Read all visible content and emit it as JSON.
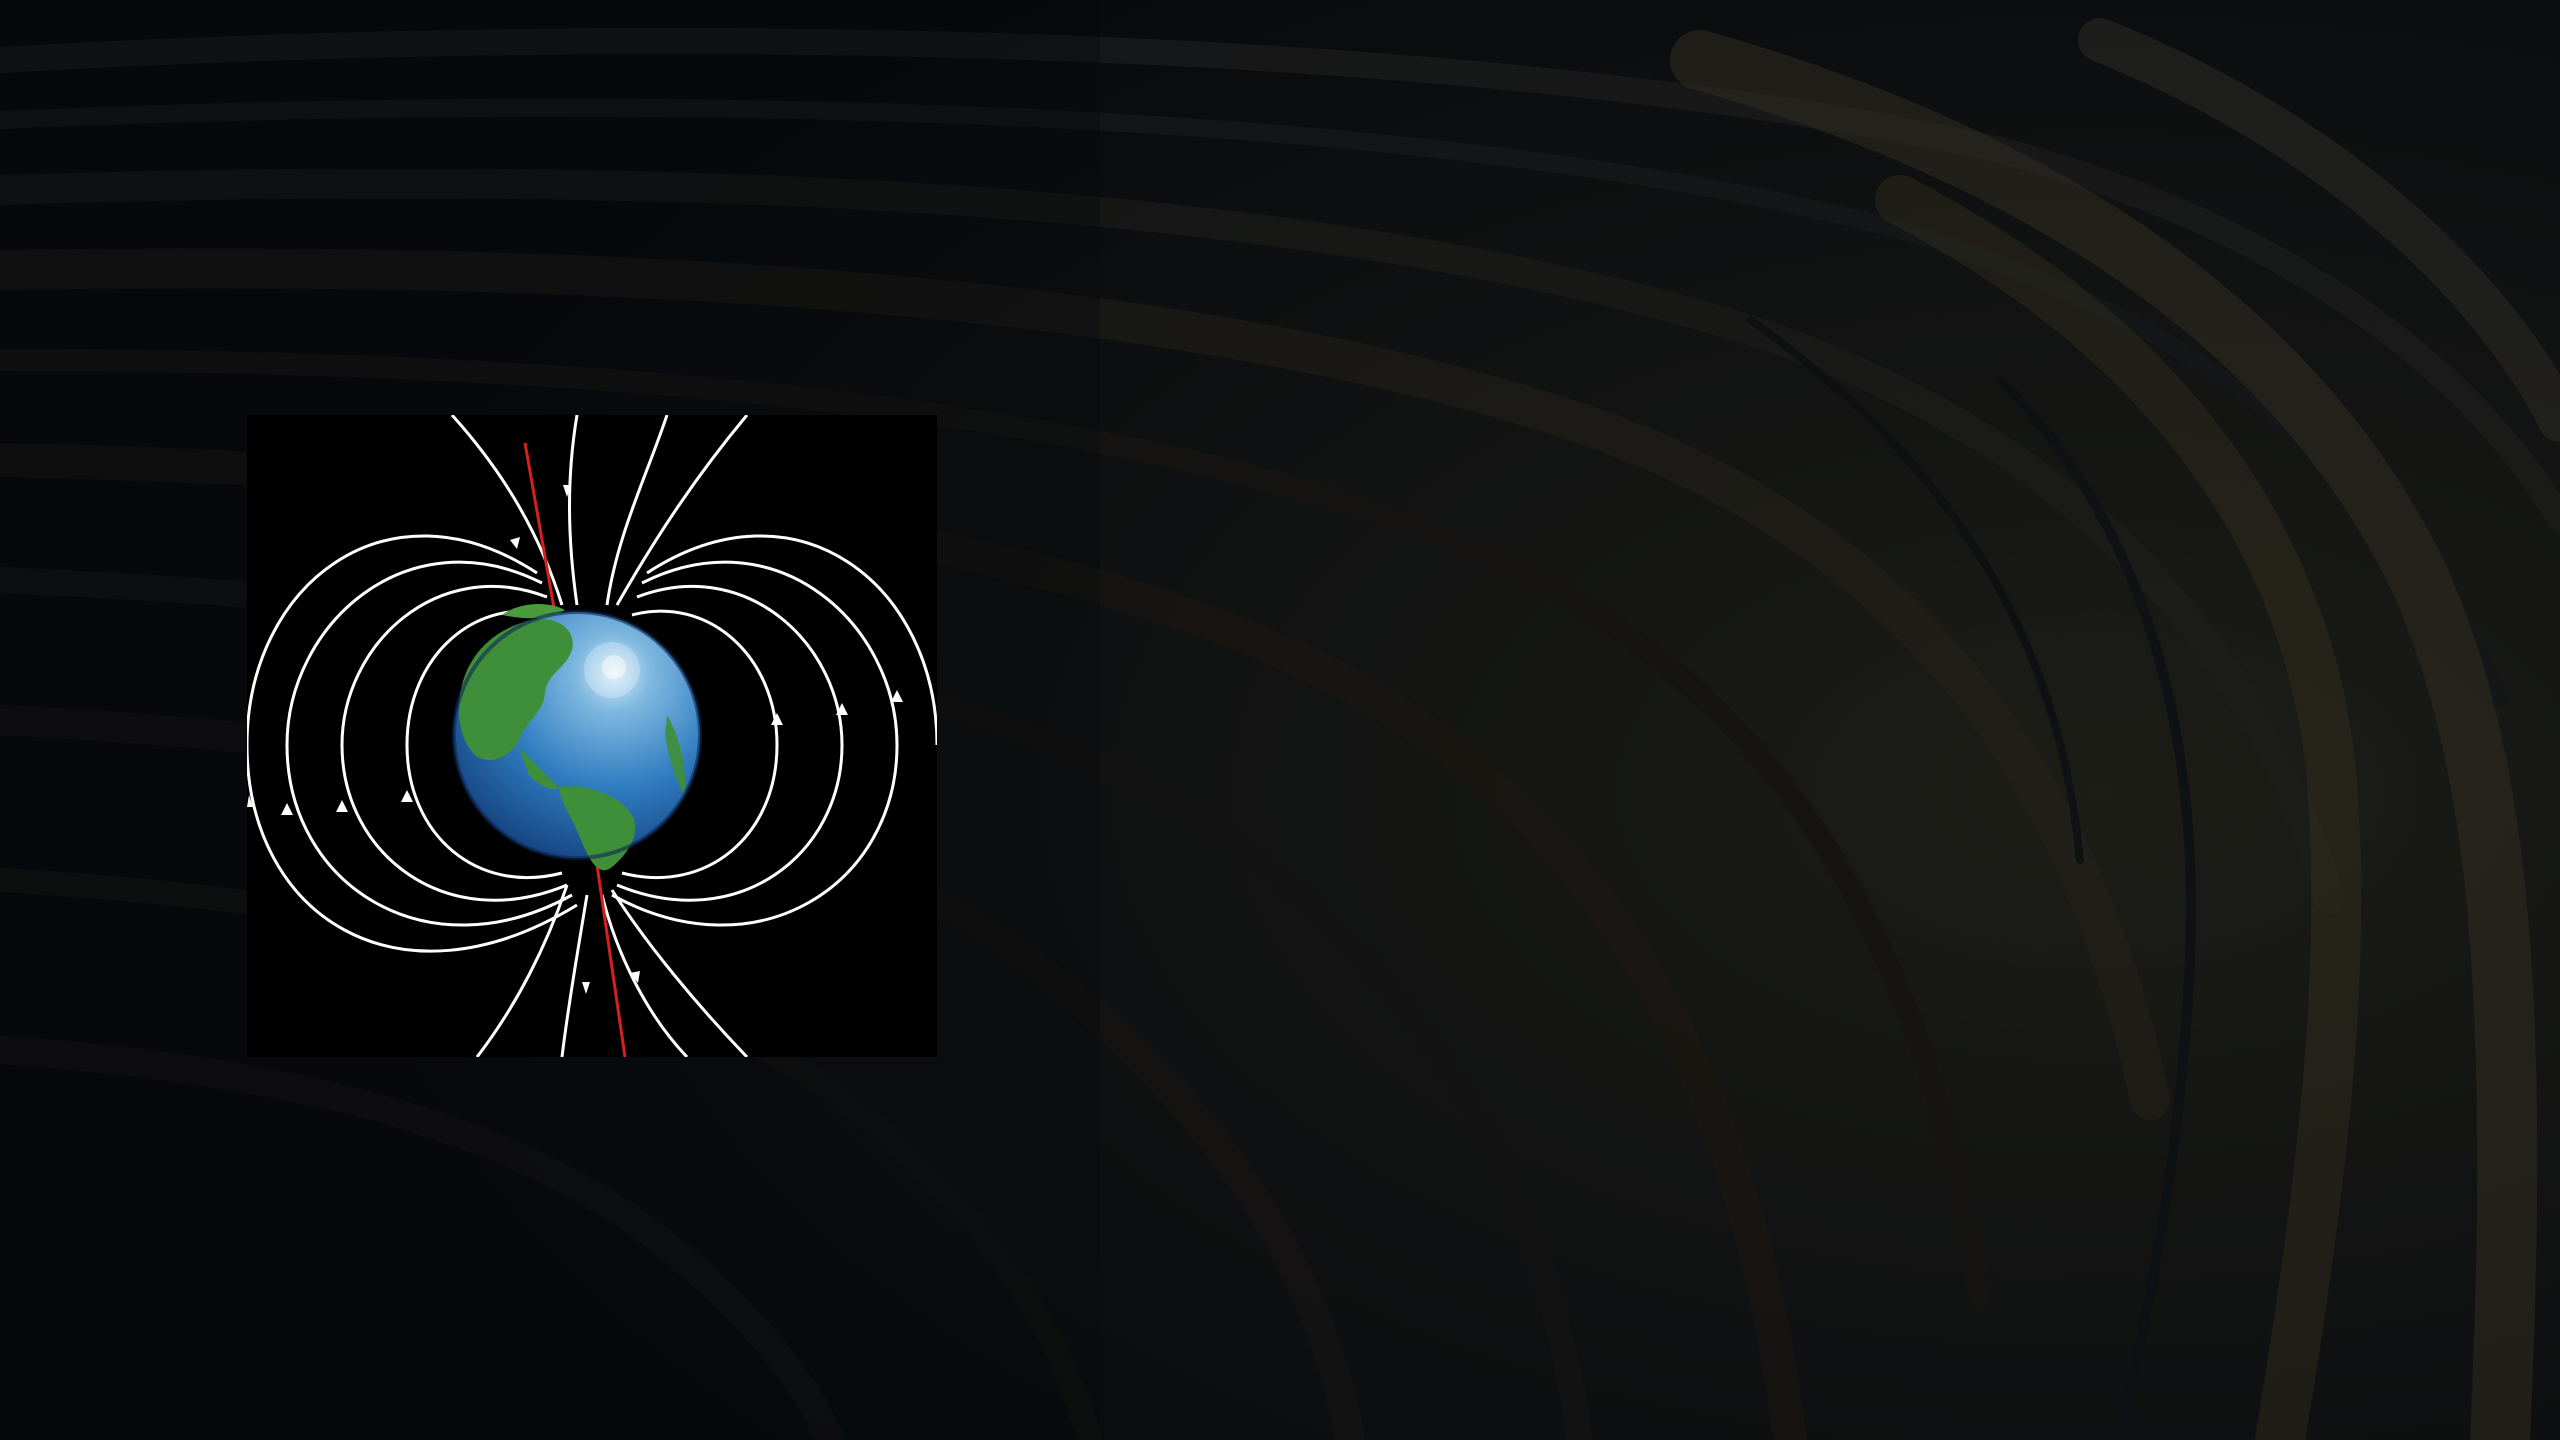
{
  "scene": {
    "background": "open-pit-mine-terraces",
    "overlay_color": "#0b0e12"
  },
  "figure": {
    "subject": "earth-magnetic-field-lines",
    "panel_color": "#000000",
    "field_line_color": "#ffffff",
    "magnetic_axis_color": "#d42020",
    "ocean_color": "#2f7cc0",
    "land_color": "#3f8f3a"
  }
}
